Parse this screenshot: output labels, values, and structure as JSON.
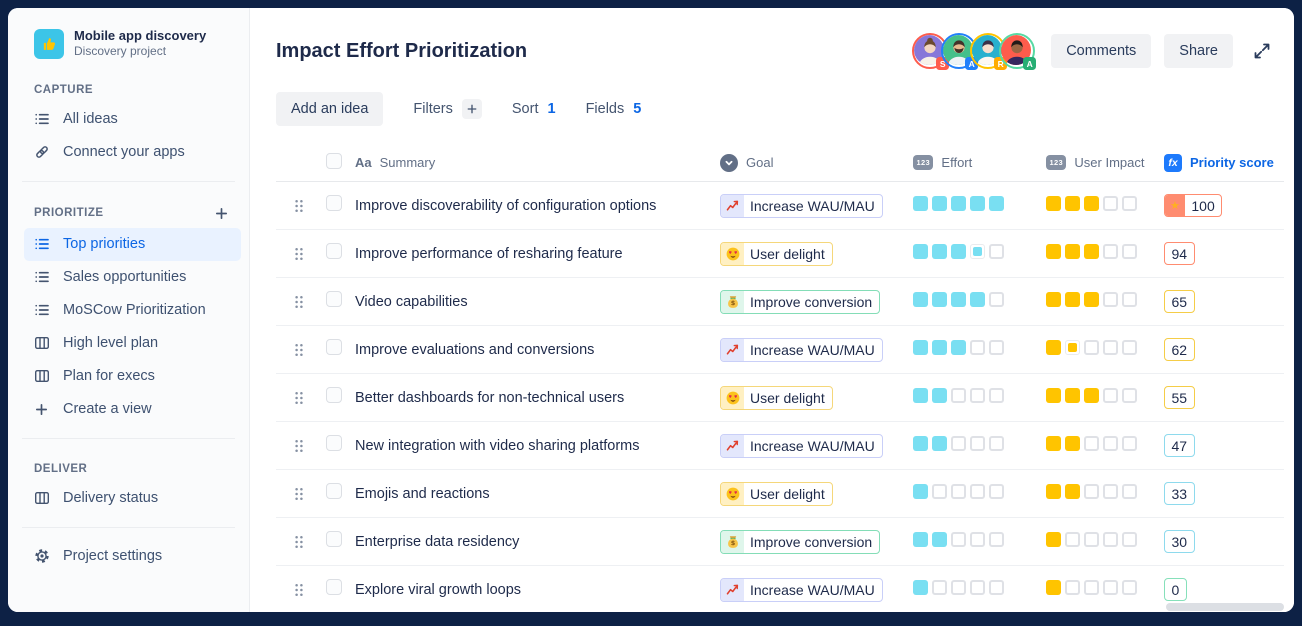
{
  "sidebar": {
    "project": {
      "name": "Mobile app discovery",
      "type": "Discovery project",
      "icon": "thumbs-up-icon",
      "icon_bg": "#3cc5e8",
      "icon_color": "#ffc400"
    },
    "sections": [
      {
        "label": "CAPTURE",
        "has_add_button": false,
        "items": [
          {
            "label": "All ideas",
            "icon": "list",
            "active": false
          },
          {
            "label": "Connect your apps",
            "icon": "link",
            "active": false
          }
        ]
      },
      {
        "label": "PRIORITIZE",
        "has_add_button": true,
        "items": [
          {
            "label": "Top priorities",
            "icon": "list",
            "active": true
          },
          {
            "label": "Sales opportunities",
            "icon": "list",
            "active": false
          },
          {
            "label": "MoSCow Prioritization",
            "icon": "list",
            "active": false
          },
          {
            "label": "High level plan",
            "icon": "board",
            "active": false
          },
          {
            "label": "Plan for execs",
            "icon": "board",
            "active": false
          },
          {
            "label": "Create a view",
            "icon": "plus",
            "active": false
          }
        ]
      },
      {
        "label": "DELIVER",
        "has_add_button": false,
        "items": [
          {
            "label": "Delivery status",
            "icon": "board",
            "active": false
          }
        ]
      }
    ],
    "footer_item": {
      "label": "Project settings",
      "icon": "gear"
    }
  },
  "header": {
    "title": "Impact Effort Prioritization",
    "comments_label": "Comments",
    "share_label": "Share",
    "avatars": [
      {
        "initial": "S",
        "ring": "#fe5c4c",
        "bg": "#8777d9",
        "badge_bg": "#fe5c4c",
        "skin": "#f3d6c1",
        "hair": "#6b4a2f",
        "shirt": "#f7f1e8",
        "style": "bun"
      },
      {
        "initial": "A",
        "ring": "#2180fa",
        "bg": "#44c08a",
        "badge_bg": "#2180fa",
        "skin": "#e8b98e",
        "hair": "#43332a",
        "shirt": "#eef3f6",
        "style": "beard"
      },
      {
        "initial": "R",
        "ring": "#ffc400",
        "bg": "#27b0ce",
        "badge_bg": "#ffab00",
        "skin": "#f6dfce",
        "hair": "#3a3148",
        "shirt": "#fdf8f2",
        "style": "short"
      },
      {
        "initial": "A",
        "ring": "#57d9a3",
        "bg": "#fe5c4c",
        "badge_bg": "#27ae74",
        "skin": "#9c6644",
        "hair": "#231a18",
        "shirt": "#35275e",
        "style": "short"
      }
    ]
  },
  "toolbar": {
    "add_idea_label": "Add an idea",
    "filters_label": "Filters",
    "sort_label": "Sort",
    "sort_count": "1",
    "fields_label": "Fields",
    "fields_count": "5"
  },
  "table": {
    "columns": {
      "summary": "Summary",
      "goal": "Goal",
      "effort": "Effort",
      "user_impact": "User Impact",
      "priority_score": "Priority score"
    },
    "goal_types": {
      "wau": {
        "label": "Increase WAU/MAU",
        "border": "#c9cff8",
        "tile_bg": "#e3e7fc",
        "icon": "chart-up-emoji"
      },
      "delight": {
        "label": "User delight",
        "border": "#f5d77a",
        "tile_bg": "#fff0c2",
        "icon": "heart-eyes-emoji"
      },
      "conversion": {
        "label": "Improve conversion",
        "border": "#84ddb7",
        "tile_bg": "#dff6eb",
        "icon": "money-bag-emoji"
      }
    },
    "rating": {
      "max": 5,
      "effort_fill": "#79dff2",
      "impact_fill": "#ffc400",
      "empty_border": "#dfe1e6"
    },
    "score_tiers": {
      "high": {
        "border": "#ff8c70",
        "star_bg": "#ff8c70",
        "star_color": "#ffb020"
      },
      "orange": {
        "border": "#ff8c70"
      },
      "yellow": {
        "border": "#f5cd47"
      },
      "cyan": {
        "border": "#8edaed"
      },
      "green": {
        "border": "#86e0ba"
      }
    },
    "rows": [
      {
        "summary": "Improve discoverability of configuration options",
        "goal": "wau",
        "effort": 5,
        "effort_partial": false,
        "impact": 3,
        "impact_partial": false,
        "score": "100",
        "tier": "high",
        "starred": true
      },
      {
        "summary": "Improve performance of resharing feature",
        "goal": "delight",
        "effort": 3,
        "effort_partial": true,
        "impact": 3,
        "impact_partial": false,
        "score": "94",
        "tier": "orange",
        "starred": false
      },
      {
        "summary": "Video capabilities",
        "goal": "conversion",
        "effort": 4,
        "effort_partial": false,
        "impact": 3,
        "impact_partial": false,
        "score": "65",
        "tier": "yellow",
        "starred": false
      },
      {
        "summary": "Improve evaluations and conversions",
        "goal": "wau",
        "effort": 3,
        "effort_partial": false,
        "impact": 1,
        "impact_partial": true,
        "score": "62",
        "tier": "yellow",
        "starred": false
      },
      {
        "summary": "Better dashboards for non-technical users",
        "goal": "delight",
        "effort": 2,
        "effort_partial": false,
        "impact": 3,
        "impact_partial": false,
        "score": "55",
        "tier": "yellow",
        "starred": false
      },
      {
        "summary": "New integration with video sharing platforms",
        "goal": "wau",
        "effort": 2,
        "effort_partial": false,
        "impact": 2,
        "impact_partial": false,
        "score": "47",
        "tier": "cyan",
        "starred": false
      },
      {
        "summary": "Emojis and reactions",
        "goal": "delight",
        "effort": 1,
        "effort_partial": false,
        "impact": 2,
        "impact_partial": false,
        "score": "33",
        "tier": "cyan",
        "starred": false
      },
      {
        "summary": "Enterprise data residency",
        "goal": "conversion",
        "effort": 2,
        "effort_partial": false,
        "impact": 1,
        "impact_partial": false,
        "score": "30",
        "tier": "cyan",
        "starred": false
      },
      {
        "summary": "Explore viral growth loops",
        "goal": "wau",
        "effort": 1,
        "effort_partial": false,
        "impact": 1,
        "impact_partial": false,
        "score": "0",
        "tier": "green",
        "starred": false
      }
    ]
  }
}
